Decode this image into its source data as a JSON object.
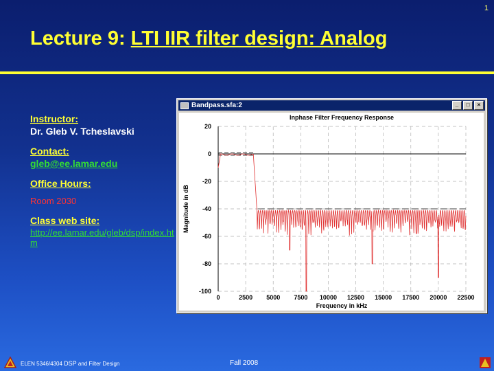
{
  "slide_number": "1",
  "title_prefix": "Lecture 9: ",
  "title_main": "LTI IIR filter design: Analog",
  "instructor": {
    "label": "Instructor:",
    "name": "Dr. Gleb V. Tcheslavski"
  },
  "contact": {
    "label": "Contact:",
    "email": "gleb@ee.lamar.edu"
  },
  "office_hours": {
    "label": "Office Hours:",
    "value": "Room 2030"
  },
  "class_web": {
    "label": "Class web site:",
    "url": "http://ee.lamar.edu/gleb/dsp/index.htm"
  },
  "window": {
    "title": "Bandpass.sfa:2",
    "btn_min": "_",
    "btn_max": "□",
    "btn_close": "×"
  },
  "chart_data": {
    "type": "line",
    "title": "Inphase Filter Frequency Response",
    "xlabel": "Frequency in kHz",
    "ylabel": "Magnitude in dB",
    "xlim": [
      0,
      22500
    ],
    "ylim": [
      -100,
      20
    ],
    "xticks": [
      "0",
      "2500",
      "5000",
      "7500",
      "10000",
      "12500",
      "15000",
      "17500",
      "20000",
      "22500"
    ],
    "yticks": [
      "20",
      "0",
      "-20",
      "-40",
      "-60",
      "-80",
      "-100"
    ],
    "grid": true,
    "series": [
      {
        "values_description_free": true,
        "x": [
          0,
          200,
          500,
          1000,
          1500,
          2000,
          2500,
          3000,
          3200,
          3400,
          3500,
          3600,
          3800,
          4000,
          4500,
          5000,
          5500,
          6000,
          6500,
          7000,
          7500,
          8000,
          9000,
          10000,
          11000,
          12000,
          13000,
          14000,
          15000,
          16000,
          17000,
          18000,
          19000,
          20000,
          21000,
          22000,
          22500
        ],
        "y": [
          -10,
          -1,
          0,
          -1,
          0,
          -1,
          0,
          -1,
          -5,
          -25,
          -40,
          -45,
          -55,
          -42,
          -48,
          -60,
          -44,
          -52,
          -70,
          -45,
          -50,
          -100,
          -46,
          -55,
          -44,
          -52,
          -48,
          -80,
          -45,
          -53,
          -46,
          -58,
          -44,
          -90,
          -47,
          -55,
          -45
        ]
      }
    ],
    "spec_lines": {
      "passband_upper": 1,
      "passband_lower": -1,
      "stopband": -40,
      "passband_end": 3300
    }
  },
  "footer": {
    "left_small": "ELEN 5346/4304 ",
    "left_big": "DSP",
    "left_rest": " and Filter Design",
    "center": "Fall 2008"
  },
  "colors": {
    "title": "#ffff33",
    "link": "#33dd33",
    "room": "#ff3333",
    "curve": "#e03030"
  }
}
